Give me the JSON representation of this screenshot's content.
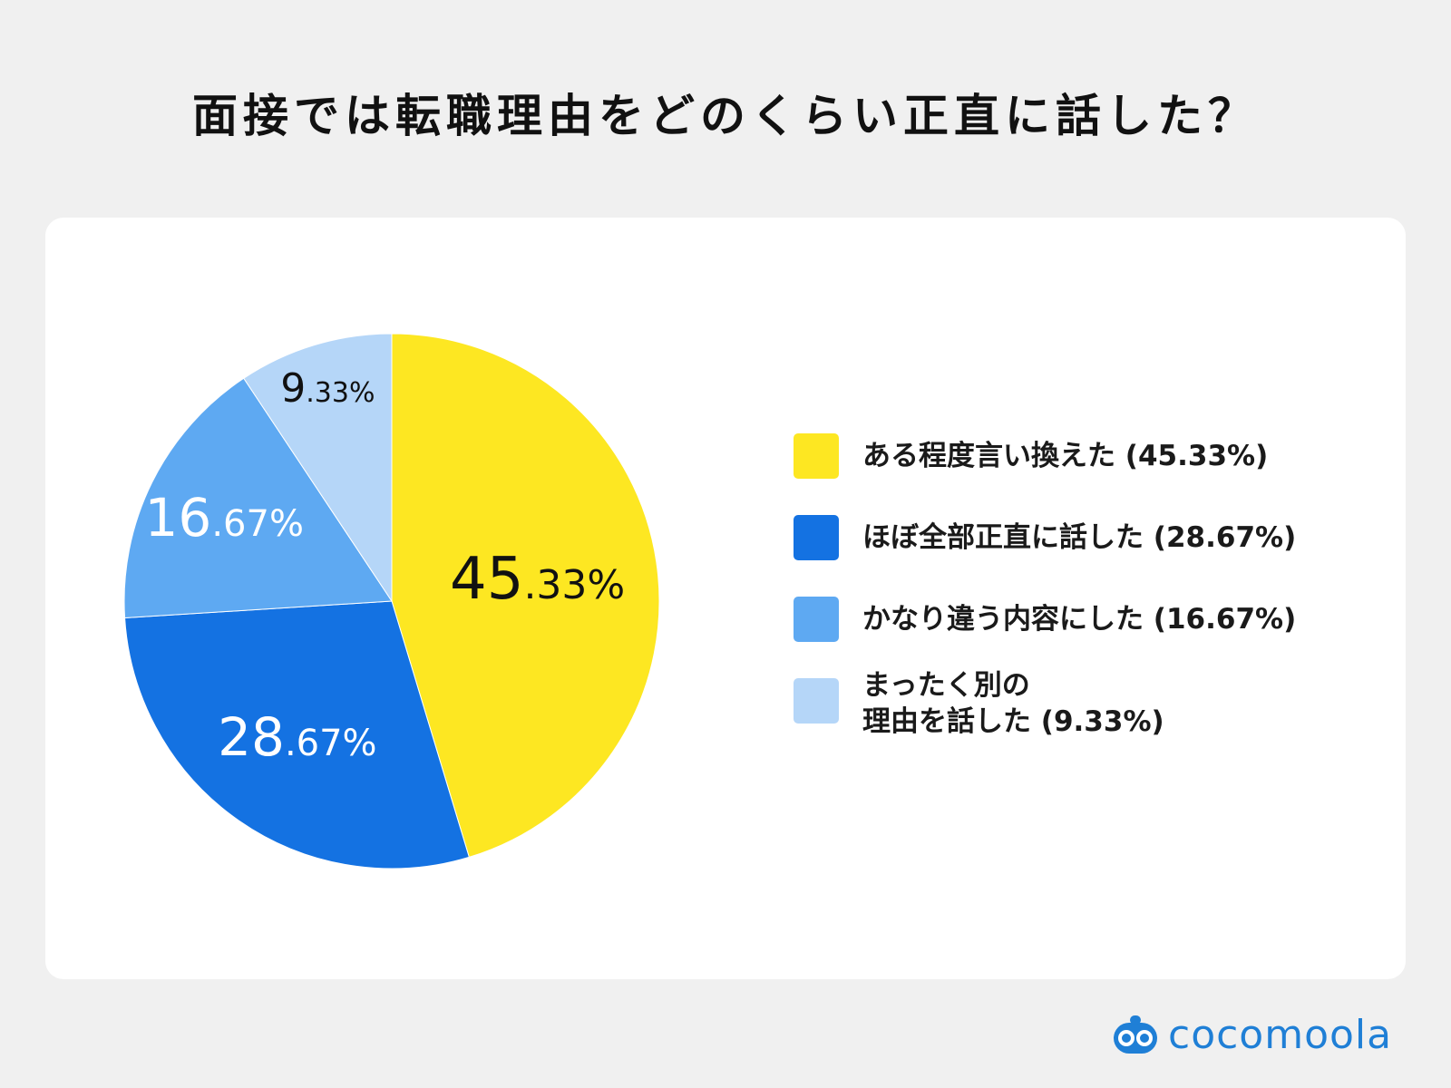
{
  "title": "面接では転職理由をどのくらい正直に話した？",
  "colors": {
    "yellow": "#fde722",
    "dark_blue": "#1472e2",
    "mid_blue": "#5ea9f2",
    "light_blue": "#b5d6f8",
    "brand": "#1f7fd6"
  },
  "chart_data": {
    "type": "pie",
    "title": "面接では転職理由をどのくらい正直に話した？",
    "legend_position": "right",
    "slices": [
      {
        "label": "ある程度言い換えた",
        "value": 45.33,
        "big": "45",
        "small": ".33%",
        "color": "#fde722",
        "text_color": "#111111"
      },
      {
        "label": "ほぼ全部正直に話した",
        "value": 28.67,
        "big": "28",
        "small": ".67%",
        "color": "#1472e2",
        "text_color": "#ffffff"
      },
      {
        "label": "かなり違う内容にした",
        "value": 16.67,
        "big": "16",
        "small": ".67%",
        "color": "#5ea9f2",
        "text_color": "#ffffff"
      },
      {
        "label": "まったく別の理由を話した",
        "value": 9.33,
        "big": "9",
        "small": ".33%",
        "color": "#b5d6f8",
        "text_color": "#111111"
      }
    ]
  },
  "legend": [
    {
      "line1": "ある程度言い換えた (45.33%)"
    },
    {
      "line1": "ほぼ全部正直に話した (28.67%)"
    },
    {
      "line1": "かなり違う内容にした (16.67%)"
    },
    {
      "line1": "まったく別の",
      "line2": "理由を話した (9.33%)"
    }
  ],
  "brand": {
    "name": "cocomoola",
    "icon": "cocomoola-logo-icon"
  }
}
